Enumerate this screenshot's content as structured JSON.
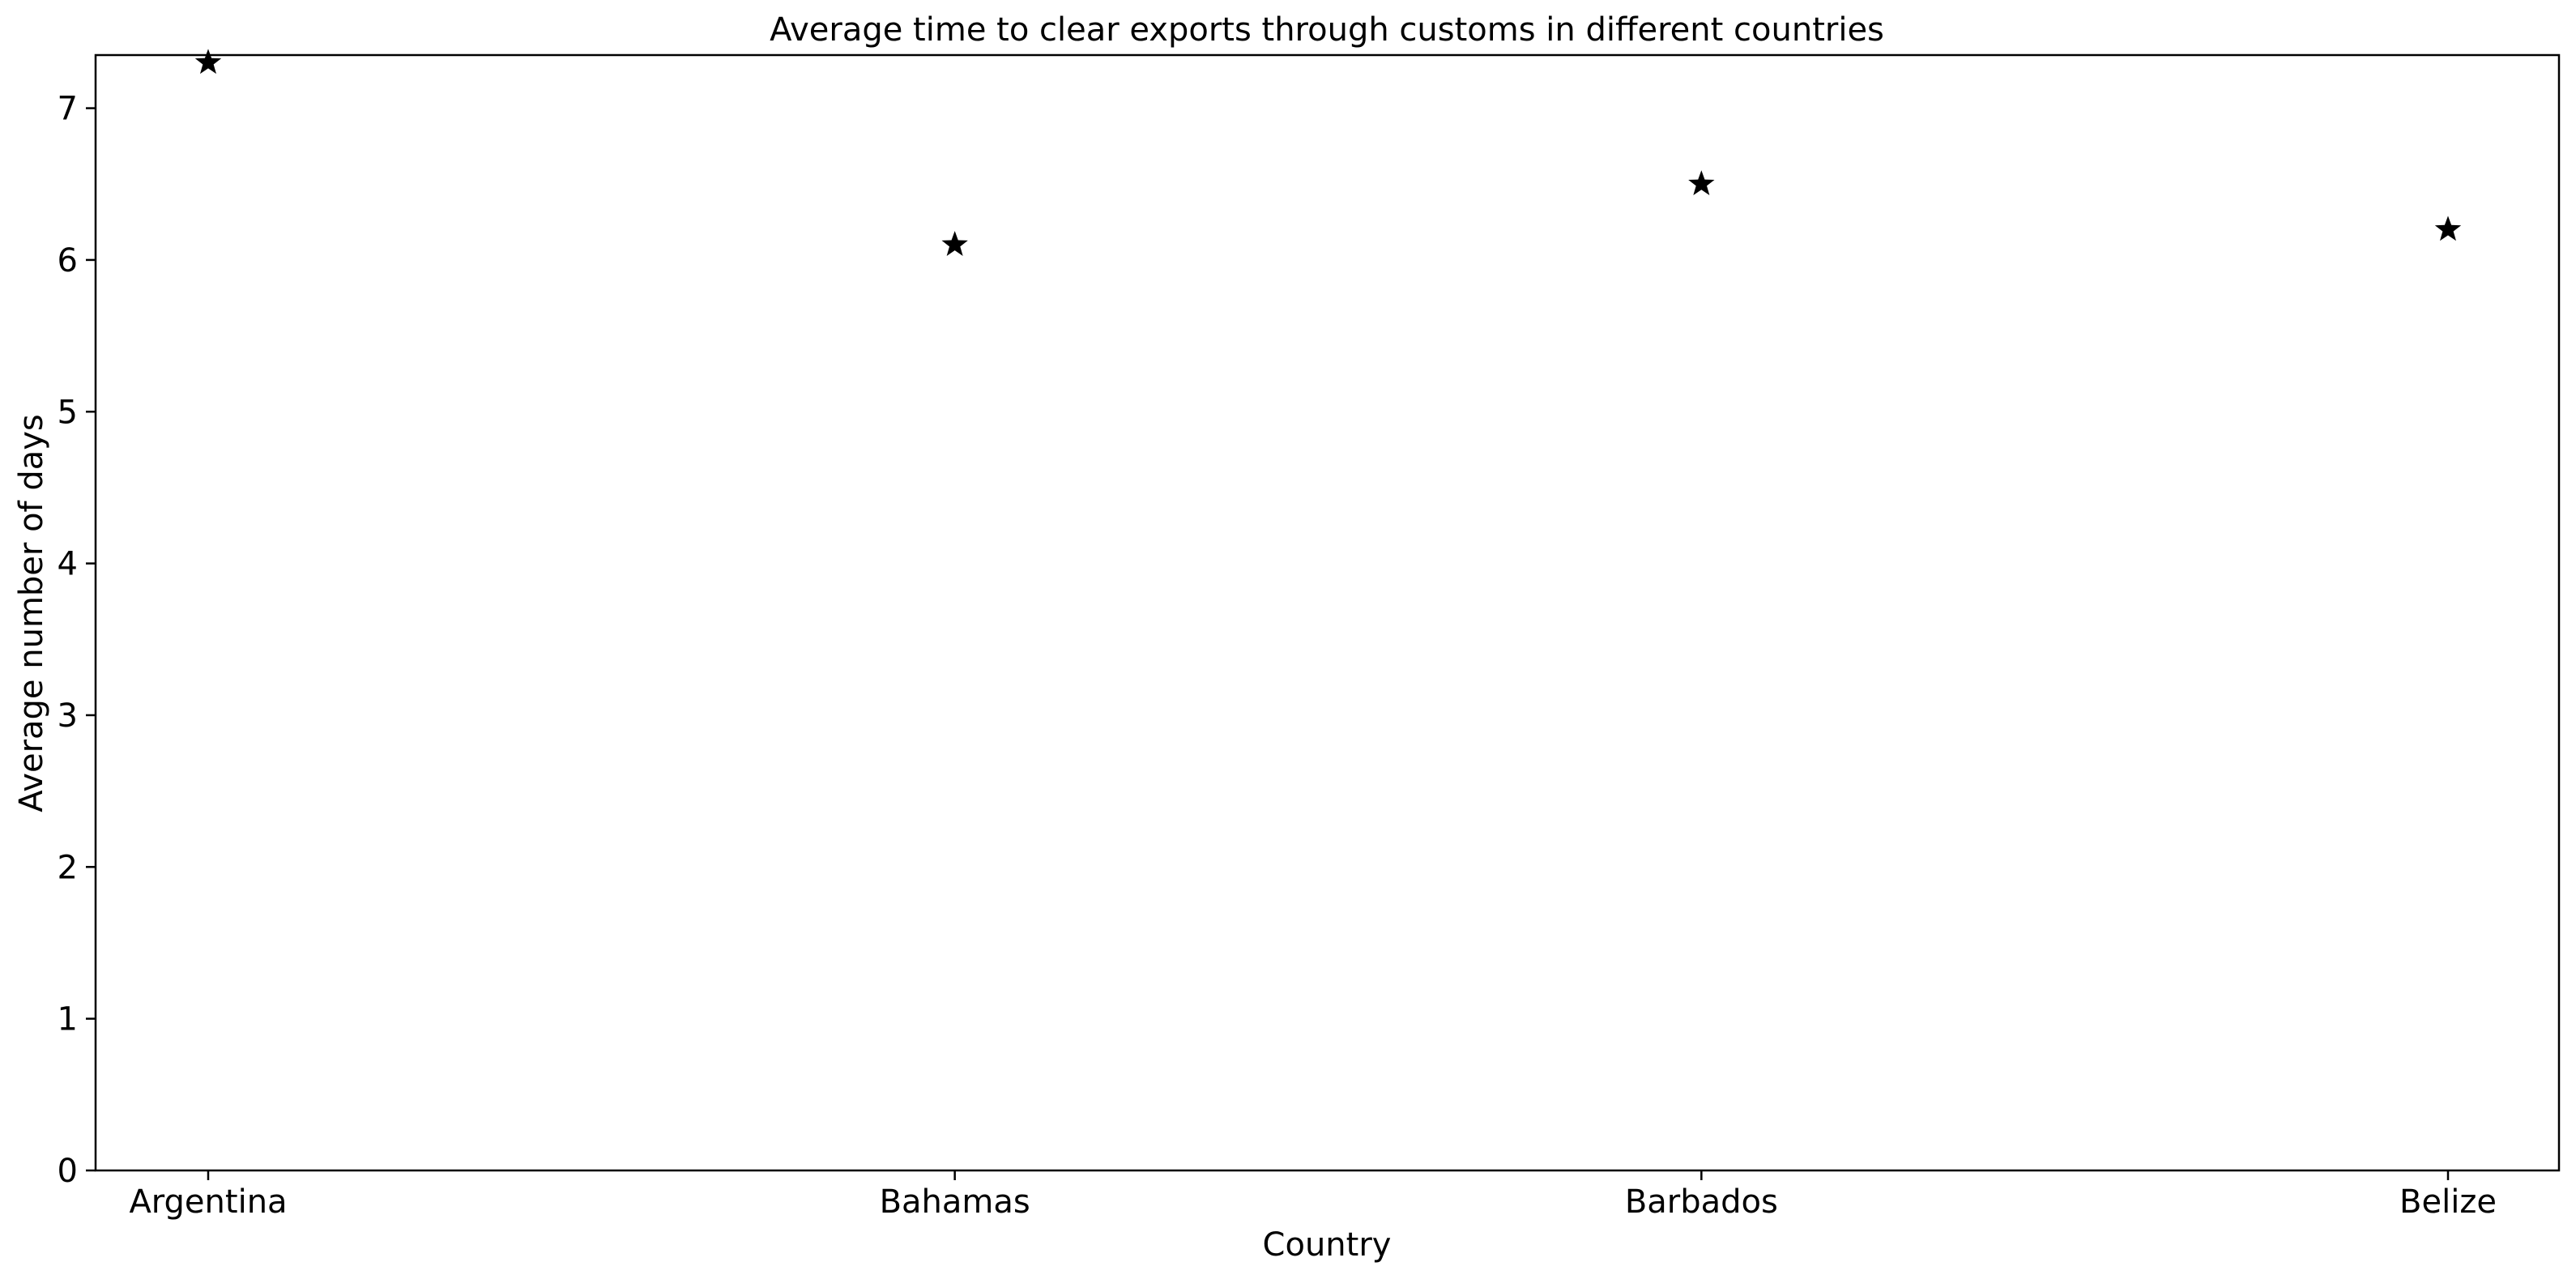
{
  "chart_data": {
    "type": "scatter",
    "title": "Average time to clear exports through customs in different countries",
    "xlabel": "Country",
    "ylabel": "Average number of days",
    "categories": [
      "Argentina",
      "Bahamas",
      "Barbados",
      "Belize"
    ],
    "values": [
      7.3,
      6.1,
      6.5,
      6.2
    ],
    "ylim": [
      0,
      7.35
    ],
    "yticks": [
      0,
      1,
      2,
      3,
      4,
      5,
      6,
      7
    ],
    "marker": "star",
    "marker_color": "#000000",
    "grid": false,
    "legend": "none"
  }
}
